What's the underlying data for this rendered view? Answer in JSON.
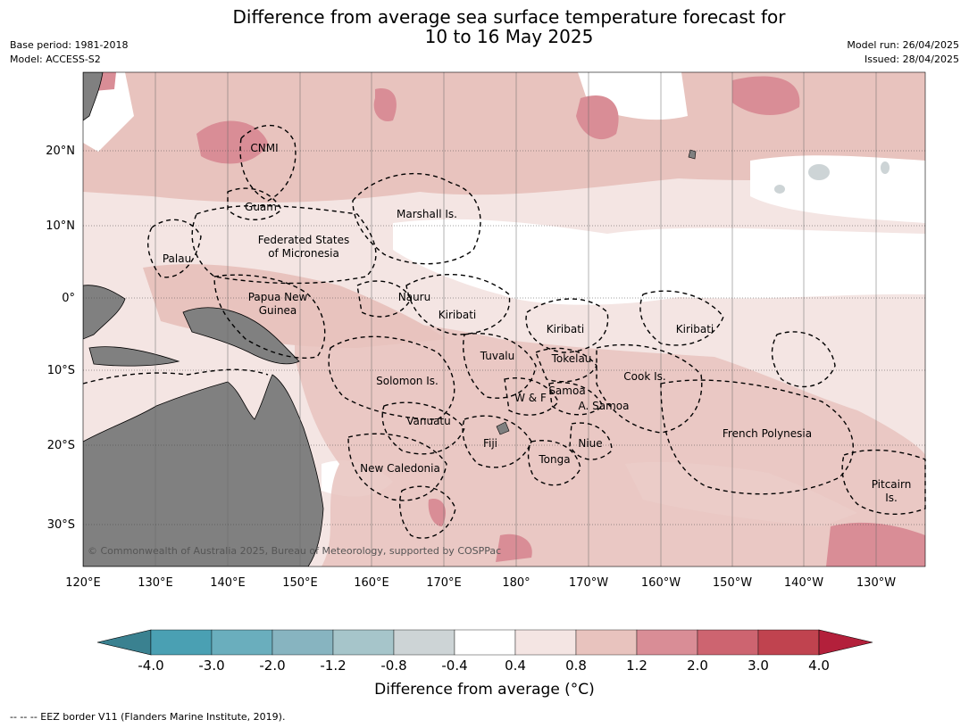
{
  "title": {
    "line1": "Difference from average sea surface temperature forecast for",
    "line2": "10 to 16 May 2025"
  },
  "meta_left": {
    "base_period": "Base period: 1981-2018",
    "model": "Model: ACCESS-S2"
  },
  "meta_right": {
    "model_run": "Model run: 26/04/2025",
    "issued": "Issued: 28/04/2025"
  },
  "lon_labels": [
    "120°E",
    "130°E",
    "140°E",
    "150°E",
    "160°E",
    "170°E",
    "180°",
    "170°W",
    "160°W",
    "150°W",
    "140°W",
    "130°W"
  ],
  "lat_labels": [
    "20°N",
    "10°N",
    "0°",
    "10°S",
    "20°S",
    "30°S"
  ],
  "places": [
    {
      "name": "CNMI"
    },
    {
      "name": "Guam"
    },
    {
      "name": "Marshall Is."
    },
    {
      "name": "Federated States"
    },
    {
      "name": "of Micronesia"
    },
    {
      "name": "Palau"
    },
    {
      "name": "Papua New"
    },
    {
      "name": "Guinea"
    },
    {
      "name": "Nauru"
    },
    {
      "name": "Kiribati"
    },
    {
      "name": "Kiribati"
    },
    {
      "name": "Kiribati"
    },
    {
      "name": "Tuvalu"
    },
    {
      "name": "Tokelau"
    },
    {
      "name": "Solomon Is."
    },
    {
      "name": "Cook Is."
    },
    {
      "name": "Samoa"
    },
    {
      "name": "W & F"
    },
    {
      "name": "A. Samoa"
    },
    {
      "name": "Vanuatu"
    },
    {
      "name": "French Polynesia"
    },
    {
      "name": "Fiji"
    },
    {
      "name": "Niue"
    },
    {
      "name": "Tonga"
    },
    {
      "name": "New Caledonia"
    },
    {
      "name": "Pitcairn"
    },
    {
      "name": "Is."
    }
  ],
  "copyright": "© Commonwealth of Australia 2025, Bureau of Meteorology, supported by COSPPac",
  "colorbar": {
    "label": "Difference from average (°C)",
    "ticks": [
      "-4.0",
      "-3.0",
      "-2.0",
      "-1.2",
      "-0.8",
      "-0.4",
      "0.4",
      "0.8",
      "1.2",
      "2.0",
      "3.0",
      "4.0"
    ],
    "colors": [
      "#3a8190",
      "#4aa0b3",
      "#6aaebd",
      "#87b4c0",
      "#a6c5ca",
      "#cdd4d6",
      "#ffffff",
      "#f4e5e3",
      "#e8c3be",
      "#d98d96",
      "#cd6470",
      "#c0434f",
      "#b3203b"
    ]
  },
  "footer": "--  --  -- EEZ border V11 (Flanders Marine Institute, 2019)."
}
